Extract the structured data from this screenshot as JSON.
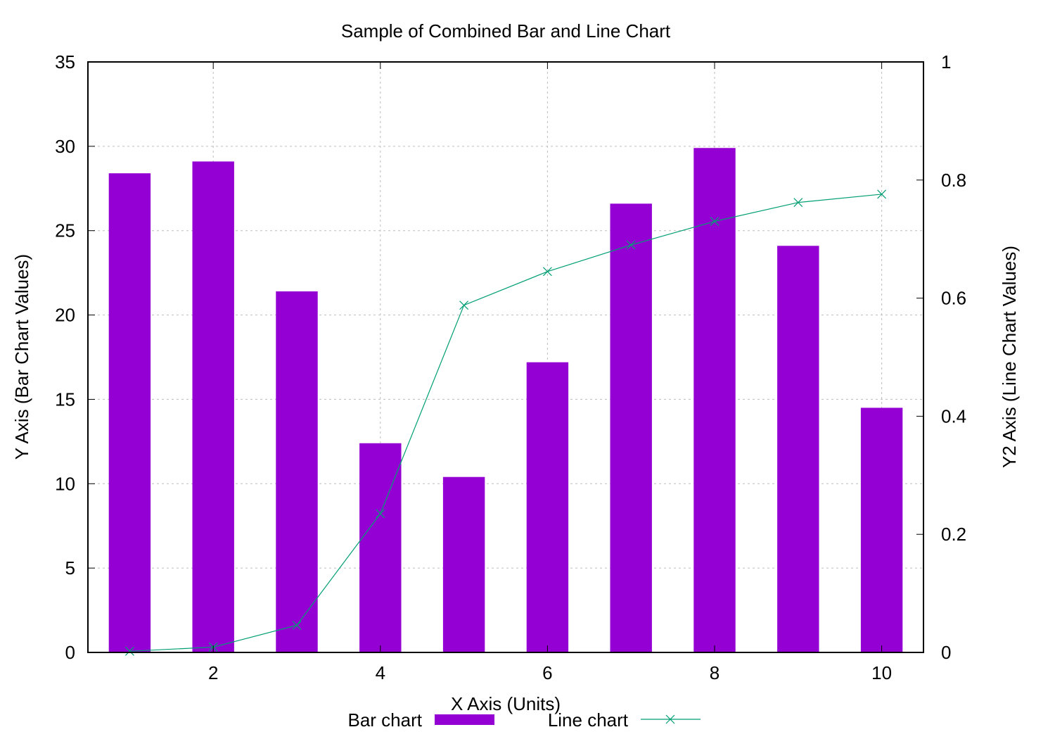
{
  "chart_data": {
    "type": "bar+line",
    "title": "Sample of Combined Bar and Line Chart",
    "xlabel": "X Axis (Units)",
    "ylabel": "Y Axis (Bar Chart Values)",
    "y2label": "Y2 Axis (Line Chart Values)",
    "xlim": [
      0.5,
      10.5
    ],
    "ylim": [
      0,
      35
    ],
    "y2lim": [
      0,
      1
    ],
    "xticks": [
      2,
      4,
      6,
      8,
      10
    ],
    "yticks": [
      0,
      5,
      10,
      15,
      20,
      25,
      30,
      35
    ],
    "y2ticks": [
      0,
      0.2,
      0.4,
      0.6,
      0.8,
      1
    ],
    "grid": true,
    "legend_position": "bottom",
    "bar_color": "#9400d3",
    "line_color": "#009e73",
    "series": [
      {
        "name": "Bar chart",
        "type": "bar",
        "axis": "y",
        "x": [
          1,
          2,
          3,
          4,
          5,
          6,
          7,
          8,
          9,
          10
        ],
        "values": [
          28.4,
          29.1,
          21.4,
          12.4,
          10.4,
          17.2,
          26.6,
          29.9,
          24.1,
          14.5
        ]
      },
      {
        "name": "Line chart",
        "type": "line",
        "axis": "y2",
        "marker": "x",
        "x": [
          1,
          2,
          3,
          4,
          5,
          6,
          7,
          8,
          9,
          10
        ],
        "values": [
          0.002,
          0.009,
          0.046,
          0.235,
          0.588,
          0.645,
          0.69,
          0.73,
          0.762,
          0.776
        ]
      }
    ]
  }
}
